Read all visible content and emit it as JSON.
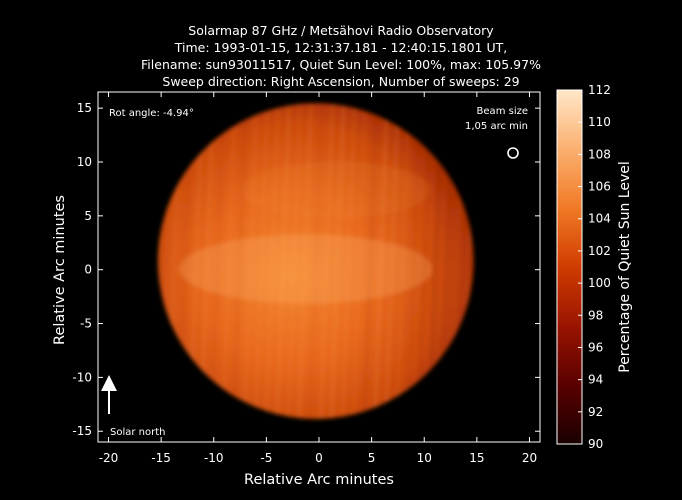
{
  "chart_data": {
    "type": "heatmap",
    "title": [
      "Solarmap 87 GHz / Metsähovi Radio Observatory",
      "Time: 1993-01-15, 12:31:37.181 - 12:40:15.1801 UT,",
      "Filename: sun93011517, Quiet Sun Level: 100%, max: 105.97%",
      "Sweep direction: Right Ascension, Number of sweeps: 29"
    ],
    "xlabel": "Relative Arc minutes",
    "ylabel": "Relative Arc minutes",
    "xlim": [
      -21,
      21
    ],
    "ylim": [
      -16,
      16.5
    ],
    "xticks": [
      -20,
      -15,
      -10,
      -5,
      0,
      5,
      10,
      15,
      20
    ],
    "yticks": [
      -15,
      -10,
      -5,
      0,
      5,
      10,
      15
    ],
    "colorbar": {
      "label": "Percentage of Quiet Sun Level",
      "min": 90,
      "max": 112,
      "ticks": [
        90,
        92,
        94,
        96,
        98,
        100,
        102,
        104,
        106,
        108,
        110,
        112
      ],
      "colors": [
        "#1a0000",
        "#5a0000",
        "#9a1400",
        "#d03c00",
        "#f07a26",
        "#fbb070",
        "#ffe7c8"
      ]
    },
    "annotations": {
      "rot_angle": "Rot angle: -4.94°",
      "beam_size_line1": "Beam size",
      "beam_size_line2": "1,05 arc min",
      "solar_north": "Solar north"
    },
    "disk": {
      "center": [
        -0.3,
        0.8
      ],
      "radius": 15.0,
      "quiet_sun_level": 100,
      "max": 105.97
    }
  }
}
